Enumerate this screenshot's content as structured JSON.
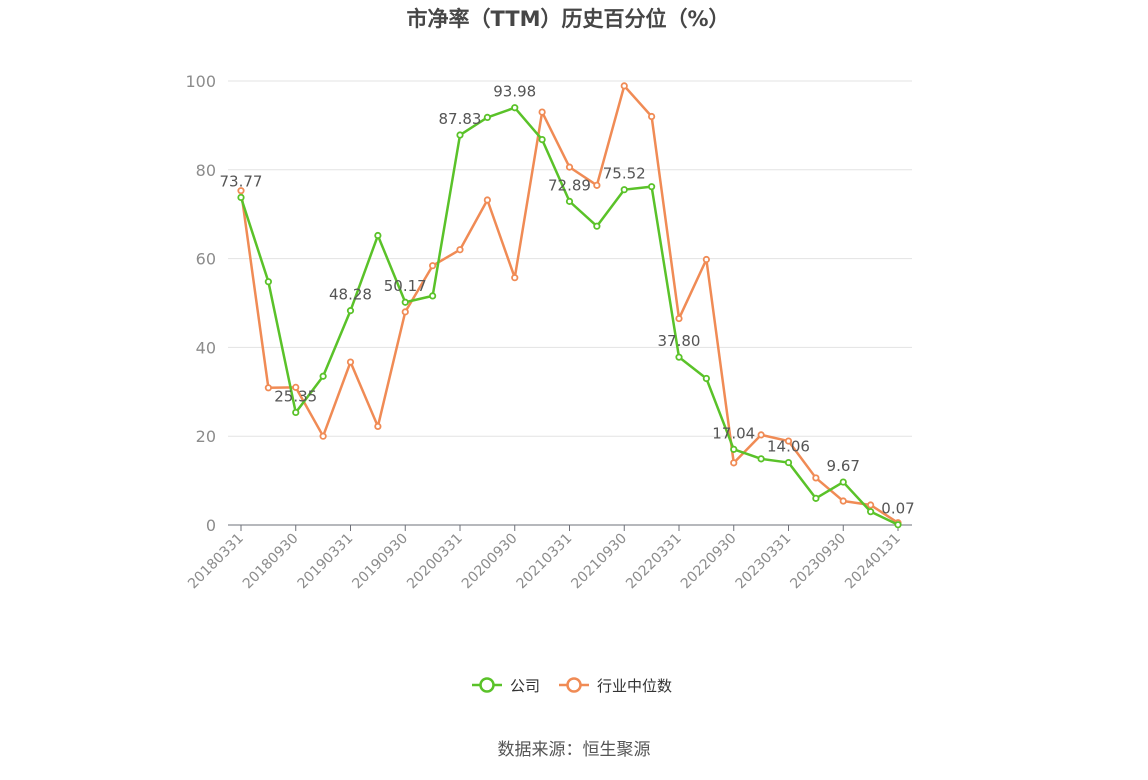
{
  "chart_data": {
    "type": "line",
    "title": "市净率（TTM）历史百分位（%）",
    "ylim": [
      0,
      100
    ],
    "yticks": [
      0,
      20,
      40,
      60,
      80,
      100
    ],
    "grid": true,
    "legend_position": "bottom-center",
    "x_tick_labels": [
      "20180331",
      "20180930",
      "20190331",
      "20190930",
      "20200331",
      "20200930",
      "20210331",
      "20210930",
      "20220331",
      "20220930",
      "20230331",
      "20230930",
      "20240131"
    ],
    "x": [
      "20180331",
      "20180630",
      "20180930",
      "20181231",
      "20190331",
      "20190630",
      "20190930",
      "20191231",
      "20200331",
      "20200630",
      "20200930",
      "20201231",
      "20210331",
      "20210630",
      "20210930",
      "20211231",
      "20220331",
      "20220630",
      "20220930",
      "20221231",
      "20230331",
      "20230630",
      "20230930",
      "20231231",
      "20240131"
    ],
    "series": [
      {
        "name": "公司",
        "color": "#5ac229",
        "values": [
          73.77,
          54.8,
          25.35,
          33.5,
          48.28,
          65.2,
          50.17,
          51.6,
          87.83,
          91.8,
          93.98,
          86.8,
          72.89,
          67.3,
          75.52,
          76.2,
          37.8,
          33.0,
          17.04,
          14.9,
          14.06,
          6.0,
          9.67,
          3.0,
          0.07
        ],
        "labeled_indices": [
          0,
          2,
          4,
          6,
          8,
          10,
          12,
          14,
          16,
          18,
          20,
          22,
          24
        ]
      },
      {
        "name": "行业中位数",
        "color": "#f08b55",
        "values": [
          75.3,
          30.9,
          31.0,
          20.0,
          36.7,
          22.2,
          48.0,
          58.4,
          62.0,
          73.2,
          55.7,
          93.0,
          80.6,
          76.5,
          98.9,
          92.0,
          46.5,
          59.8,
          14.0,
          20.3,
          18.9,
          10.6,
          5.4,
          4.5,
          0.5
        ]
      }
    ]
  },
  "footer": {
    "source": "数据来源：恒生聚源"
  },
  "colors": {
    "grid": "#e3e3e3",
    "axis": "#6e7079",
    "tick_label": "#8c8c8c",
    "title": "#464646"
  }
}
